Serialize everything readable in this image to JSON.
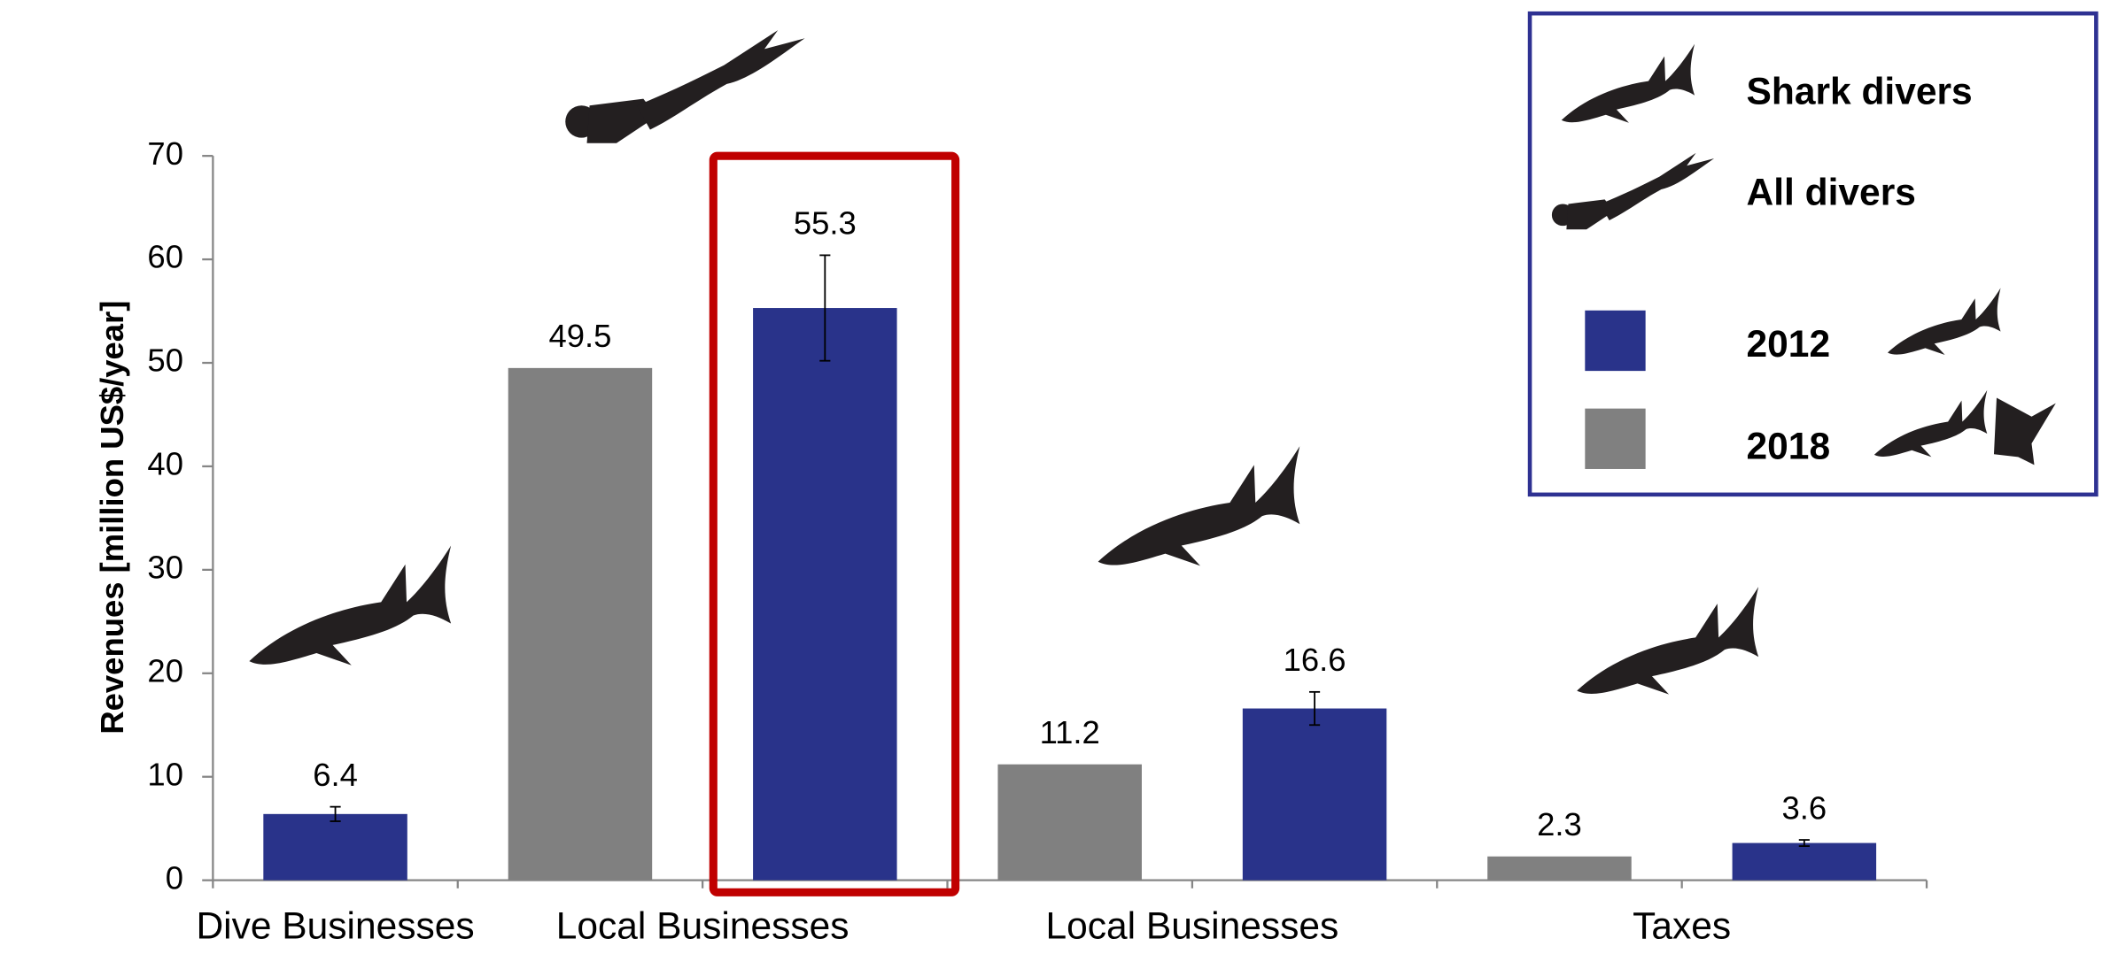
{
  "chart_data": {
    "type": "bar",
    "y_label": "Revenues [million US$/year]",
    "categories": [
      null,
      null,
      null,
      null,
      null,
      null,
      null
    ],
    "groups": [
      {
        "label": "Dive Businesses",
        "members": [
          0
        ]
      },
      {
        "label": "Local Businesses",
        "members": [
          1,
          2
        ]
      },
      {
        "label": "Local Businesses",
        "members": [
          3,
          4
        ]
      },
      {
        "label": "Taxes",
        "members": [
          5,
          6
        ]
      }
    ],
    "series": [
      {
        "name": "2012",
        "color": "#29338a",
        "values": [
          6.4,
          null,
          55.3,
          null,
          16.6,
          null,
          3.6
        ],
        "errors": [
          0.7,
          null,
          5.1,
          null,
          1.6,
          null,
          0.3
        ]
      },
      {
        "name": "2018",
        "color": "#808080",
        "values": [
          null,
          49.5,
          null,
          11.2,
          null,
          2.3,
          null
        ]
      }
    ],
    "legend_items": [
      "Shark divers",
      "All divers"
    ],
    "highlight_color": "#c00000",
    "ylim": [
      0,
      70
    ],
    "yticks": [
      0,
      10,
      20,
      30,
      40,
      50,
      60,
      70
    ]
  }
}
